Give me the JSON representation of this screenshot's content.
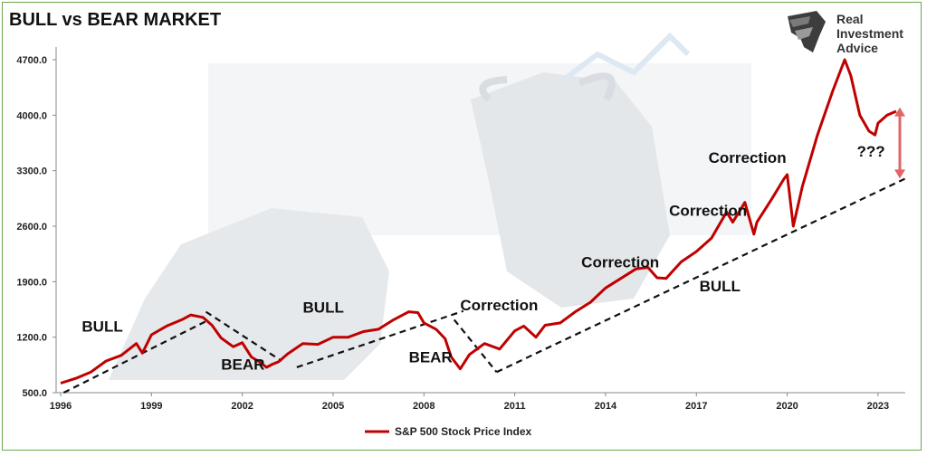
{
  "logo": {
    "lines": [
      "Real",
      "Investment",
      "Advice"
    ],
    "icon": "stallion-head-icon"
  },
  "colors": {
    "series": "#c00000",
    "trend": "#111111",
    "arrow": "#e06666"
  },
  "chart_data": {
    "type": "line",
    "title": "BULL vs BEAR MARKET",
    "xlabel": "",
    "ylabel": "",
    "xlim": [
      1996,
      2023.9
    ],
    "ylim": [
      500,
      4700
    ],
    "x_ticks": [
      "1996",
      "1999",
      "2002",
      "2005",
      "2008",
      "2011",
      "2014",
      "2017",
      "2020",
      "2023"
    ],
    "y_ticks": [
      "4700.0",
      "4000.0",
      "3300.0",
      "2600.0",
      "1900.0",
      "1200.0",
      "500.0"
    ],
    "legend": {
      "position": "bottom-center",
      "entries": [
        "S&P 500 Stock Price Index"
      ]
    },
    "grid": false,
    "series": [
      {
        "name": "S&P 500 Stock Price Index",
        "x": [
          1996.0,
          1996.5,
          1997.0,
          1997.5,
          1998.0,
          1998.5,
          1998.7,
          1999.0,
          1999.5,
          2000.0,
          2000.3,
          2000.7,
          2001.0,
          2001.3,
          2001.7,
          2002.0,
          2002.3,
          2002.6,
          2002.8,
          2003.0,
          2003.2,
          2003.5,
          2004.0,
          2004.5,
          2005.0,
          2005.5,
          2006.0,
          2006.5,
          2007.0,
          2007.5,
          2007.8,
          2008.0,
          2008.4,
          2008.7,
          2008.9,
          2009.2,
          2009.5,
          2010.0,
          2010.5,
          2011.0,
          2011.3,
          2011.7,
          2012.0,
          2012.5,
          2013.0,
          2013.5,
          2014.0,
          2014.5,
          2015.0,
          2015.4,
          2015.7,
          2016.0,
          2016.5,
          2017.0,
          2017.5,
          2018.0,
          2018.2,
          2018.6,
          2018.9,
          2019.0,
          2019.5,
          2019.9,
          2020.0,
          2020.2,
          2020.5,
          2021.0,
          2021.5,
          2021.9,
          2022.1,
          2022.4,
          2022.7,
          2022.9,
          2023.0,
          2023.3,
          2023.6
        ],
        "values": [
          620,
          680,
          760,
          900,
          970,
          1120,
          1000,
          1230,
          1340,
          1420,
          1480,
          1450,
          1350,
          1190,
          1080,
          1130,
          950,
          880,
          820,
          860,
          890,
          990,
          1120,
          1110,
          1200,
          1200,
          1270,
          1300,
          1420,
          1520,
          1510,
          1380,
          1300,
          1180,
          950,
          800,
          980,
          1120,
          1050,
          1280,
          1340,
          1200,
          1350,
          1380,
          1520,
          1640,
          1820,
          1940,
          2060,
          2080,
          1950,
          1940,
          2150,
          2280,
          2450,
          2780,
          2650,
          2900,
          2500,
          2650,
          2950,
          3200,
          3250,
          2600,
          3100,
          3750,
          4300,
          4700,
          4500,
          4000,
          3800,
          3750,
          3900,
          4000,
          4050
        ]
      }
    ],
    "trend_lines": [
      [
        [
          1996.1,
          500
        ],
        [
          2000.9,
          1420
        ]
      ],
      [
        [
          2000.8,
          1520
        ],
        [
          2003.3,
          900
        ]
      ],
      [
        [
          2003.8,
          820
        ],
        [
          2009.3,
          1530
        ]
      ],
      [
        [
          2009.0,
          1420
        ],
        [
          2010.4,
          760
        ]
      ],
      [
        [
          2010.4,
          760
        ],
        [
          2023.9,
          3200
        ]
      ]
    ],
    "annotations": [
      {
        "text": "BULL",
        "x": 1996.7,
        "y": 1270
      },
      {
        "text": "BEAR",
        "x": 2001.3,
        "y": 790
      },
      {
        "text": "BULL",
        "x": 2004.0,
        "y": 1510
      },
      {
        "text": "BEAR",
        "x": 2007.5,
        "y": 880
      },
      {
        "text": "Correction",
        "x": 2009.2,
        "y": 1540
      },
      {
        "text": "Correction",
        "x": 2013.2,
        "y": 2080
      },
      {
        "text": "Correction",
        "x": 2016.1,
        "y": 2730
      },
      {
        "text": "BULL",
        "x": 2017.1,
        "y": 1780
      },
      {
        "text": "Correction",
        "x": 2017.4,
        "y": 3400
      },
      {
        "text": "???",
        "x": 2022.3,
        "y": 3480
      }
    ],
    "range_arrow": {
      "x": 2023.9,
      "from": 4100,
      "to": 3200
    }
  }
}
